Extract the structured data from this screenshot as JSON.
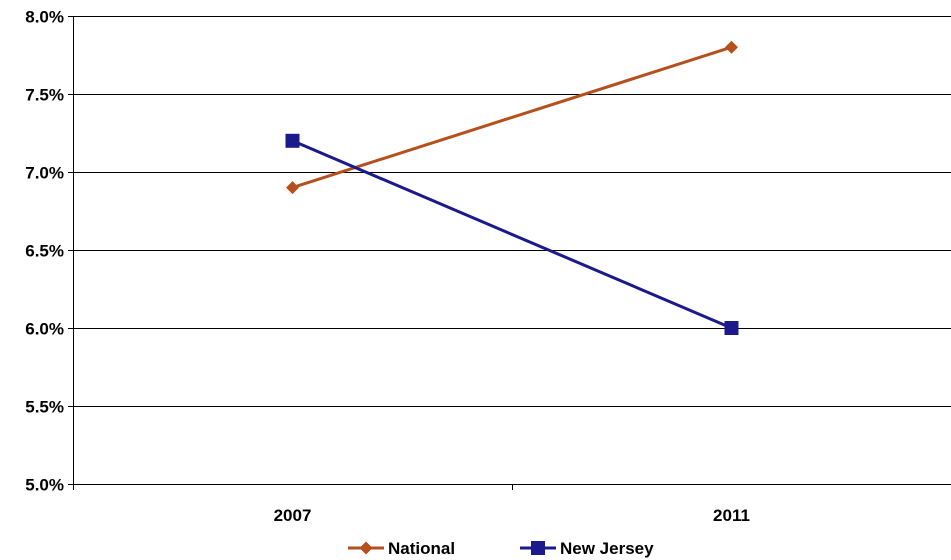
{
  "chart_data": {
    "type": "line",
    "categories": [
      "2007",
      "2011"
    ],
    "series": [
      {
        "name": "National",
        "values": [
          6.9,
          7.8
        ],
        "color": "#b5501c",
        "marker": "diamond"
      },
      {
        "name": "New Jersey",
        "values": [
          7.2,
          6.0
        ],
        "color": "#1a1a8c",
        "marker": "square"
      }
    ],
    "ylim": [
      5.0,
      8.0
    ],
    "yticks": [
      "5.0%",
      "5.5%",
      "6.0%",
      "6.5%",
      "7.0%",
      "7.5%",
      "8.0%"
    ],
    "ytick_values": [
      5.0,
      5.5,
      6.0,
      6.5,
      7.0,
      7.5,
      8.0
    ],
    "grid": true,
    "legend_position": "bottom",
    "title": "",
    "xlabel": "",
    "ylabel": ""
  }
}
